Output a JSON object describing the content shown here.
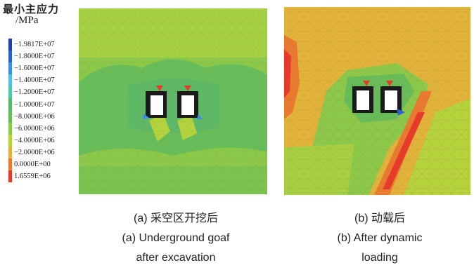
{
  "legend": {
    "title_line1": "最小主应力",
    "title_line2": "/MPa",
    "entries": [
      {
        "label": "−1.9817E+07",
        "color": "#1f3fb0"
      },
      {
        "label": "−1.8000E+07",
        "color": "#2a62d0"
      },
      {
        "label": "−1.6000E+07",
        "color": "#3d8fe0"
      },
      {
        "label": "−1.4000E+07",
        "color": "#4fbfe6"
      },
      {
        "label": "−1.2000E+07",
        "color": "#4fc8a8"
      },
      {
        "label": "−1.0000E+07",
        "color": "#55b870"
      },
      {
        "label": "−8.0000E+06",
        "color": "#68bd5a"
      },
      {
        "label": "−6.0000E+06",
        "color": "#8cc84a"
      },
      {
        "label": "−4.0000E+06",
        "color": "#b6d23c"
      },
      {
        "label": "−2.0000E+06",
        "color": "#e2b33a"
      },
      {
        "label": "0.0000E+00",
        "color": "#ea7a30"
      },
      {
        "label": "1.6559E+06",
        "color": "#e83a2a"
      }
    ]
  },
  "panel_a": {
    "caption_cn": "(a) 采空区开挖后",
    "caption_en_line1": "(a) Underground goaf",
    "caption_en_line2": "after excavation"
  },
  "panel_b": {
    "caption_cn": "(b) 动载后",
    "caption_en_line1": "(b) After dynamic",
    "caption_en_line2": "loading"
  },
  "colors": {
    "green_light": "#8cc84a",
    "green_mid": "#68bd5a",
    "yellow_green": "#b6d23c",
    "orange": "#e2b33a",
    "red": "#e83a2a",
    "blue": "#2a62d0"
  }
}
